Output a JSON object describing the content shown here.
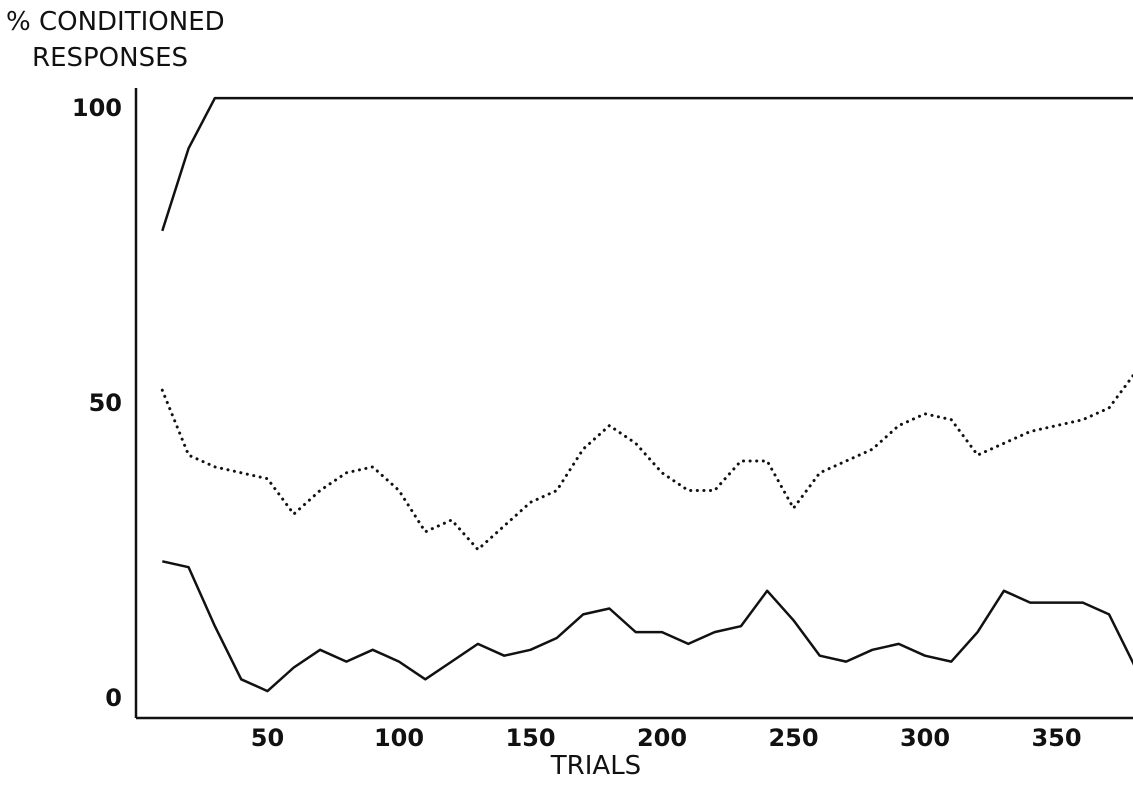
{
  "chart_data": {
    "type": "line",
    "title": "",
    "ylabel_lines": [
      "% CONDITIONED",
      "RESPONSES"
    ],
    "xlabel": "TRIALS",
    "xlim": [
      0,
      380
    ],
    "ylim": [
      0,
      100
    ],
    "grid": false,
    "x_ticks": [
      50,
      100,
      150,
      200,
      250,
      300,
      350
    ],
    "y_ticks": [
      0,
      50,
      100
    ],
    "series": [
      {
        "style": "solid",
        "color": "#111111",
        "x": [
          10,
          20,
          30,
          380
        ],
        "y": [
          79,
          93,
          101.5,
          101.5
        ]
      },
      {
        "style": "dotted",
        "color": "#111111",
        "x": [
          10,
          20,
          30,
          40,
          50,
          60,
          70,
          80,
          90,
          100,
          110,
          120,
          130,
          140,
          150,
          160,
          170,
          180,
          190,
          200,
          210,
          220,
          230,
          240,
          250,
          260,
          270,
          280,
          290,
          300,
          310,
          320,
          330,
          340,
          350,
          360,
          370,
          380
        ],
        "y": [
          52,
          41,
          39,
          38,
          37,
          31,
          35,
          38,
          39,
          35,
          28,
          30,
          25,
          29,
          33,
          35,
          42,
          46,
          43,
          38,
          35,
          35,
          40,
          40,
          32,
          38,
          40,
          42,
          46,
          48,
          47,
          41,
          43,
          45,
          46,
          47,
          49,
          55
        ]
      },
      {
        "style": "solid",
        "color": "#111111",
        "x": [
          10,
          20,
          30,
          40,
          50,
          60,
          70,
          80,
          90,
          100,
          110,
          120,
          130,
          140,
          150,
          160,
          170,
          180,
          190,
          200,
          210,
          220,
          230,
          240,
          250,
          260,
          270,
          280,
          290,
          300,
          310,
          320,
          330,
          340,
          350,
          360,
          370,
          380
        ],
        "y": [
          23,
          22,
          12,
          3,
          1,
          5,
          8,
          6,
          8,
          6,
          3,
          6,
          9,
          7,
          8,
          10,
          14,
          15,
          11,
          11,
          9,
          11,
          12,
          18,
          13,
          7,
          6,
          8,
          9,
          7,
          6,
          11,
          18,
          16,
          16,
          16,
          14,
          5
        ]
      }
    ]
  }
}
